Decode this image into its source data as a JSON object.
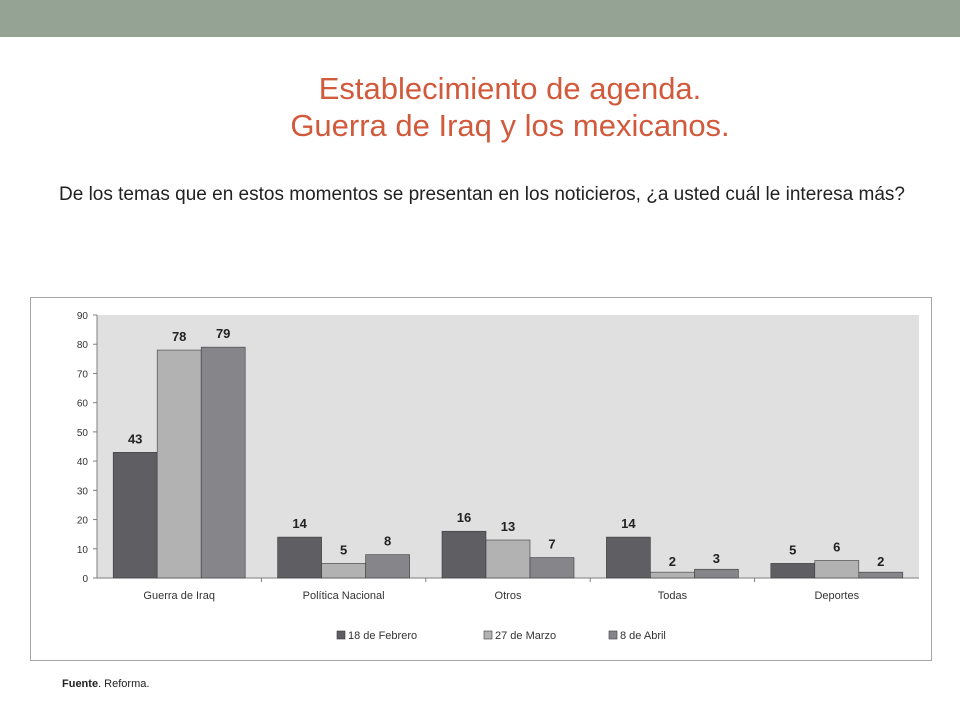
{
  "header": {
    "title_line1": "Establecimiento de agenda.",
    "title_line2": "Guerra de Iraq y los mexicanos.",
    "question": "De los temas que en estos momentos se presentan en los noticieros, ¿a usted cuál le interesa más?"
  },
  "footer": {
    "source_label": "Fuente",
    "source_text": ". Reforma."
  },
  "colors": {
    "top_bar": "#95a394",
    "title": "#d15a3c",
    "plot_bg": "#e0e0e0",
    "series": [
      "#5f5e63",
      "#b2b2b2",
      "#86868a"
    ]
  },
  "chart_data": {
    "type": "bar",
    "categories": [
      "Guerra de  Iraq",
      "Política Nacional",
      "Otros",
      "Todas",
      "Deportes"
    ],
    "series": [
      {
        "name": "18 de Febrero",
        "values": [
          43,
          14,
          16,
          14,
          5
        ]
      },
      {
        "name": "27 de Marzo",
        "values": [
          78,
          5,
          13,
          2,
          6
        ]
      },
      {
        "name": "8 de Abril",
        "values": [
          79,
          8,
          7,
          3,
          2
        ]
      }
    ],
    "ylim": [
      0,
      90
    ],
    "yticks": [
      0,
      10,
      20,
      30,
      40,
      50,
      60,
      70,
      80,
      90
    ],
    "grid": false,
    "legend": "bottom",
    "data_labels": true
  }
}
